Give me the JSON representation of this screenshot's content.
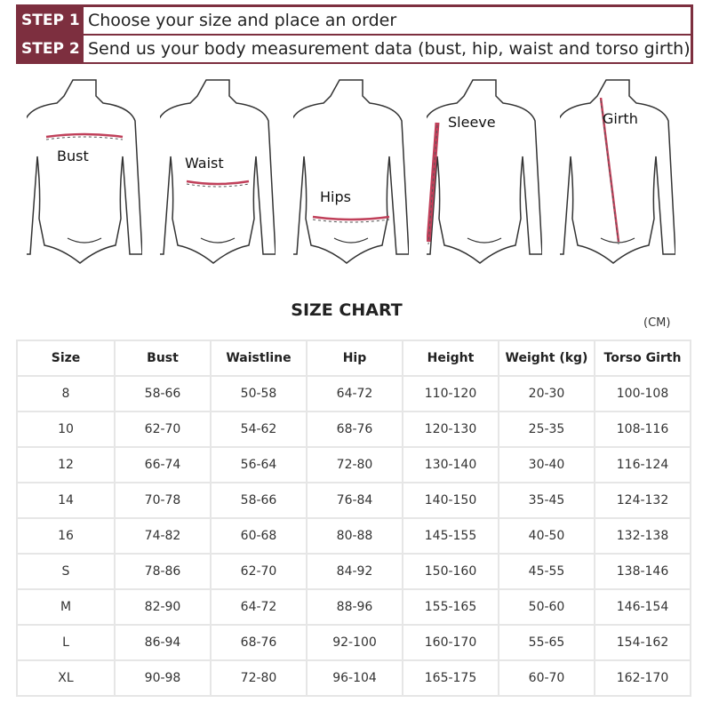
{
  "steps": [
    {
      "label": "STEP 1",
      "text": "Choose your size and place an order"
    },
    {
      "label": "STEP 2",
      "text": "Send us your body measurement data (bust, hip, waist and torso girth)"
    }
  ],
  "figures": [
    "Bust",
    "Waist",
    "Hips",
    "Sleeve",
    "Girth"
  ],
  "colors": {
    "accent": "#7d2f3f",
    "measure_line": "#c0405a"
  },
  "chart": {
    "title": "SIZE CHART",
    "unit": "(CM)",
    "headers": [
      "Size",
      "Bust",
      "Waistline",
      "Hip",
      "Height",
      "Weight (kg)",
      "Torso Girth"
    ],
    "rows": [
      [
        "8",
        "58-66",
        "50-58",
        "64-72",
        "110-120",
        "20-30",
        "100-108"
      ],
      [
        "10",
        "62-70",
        "54-62",
        "68-76",
        "120-130",
        "25-35",
        "108-116"
      ],
      [
        "12",
        "66-74",
        "56-64",
        "72-80",
        "130-140",
        "30-40",
        "116-124"
      ],
      [
        "14",
        "70-78",
        "58-66",
        "76-84",
        "140-150",
        "35-45",
        "124-132"
      ],
      [
        "16",
        "74-82",
        "60-68",
        "80-88",
        "145-155",
        "40-50",
        "132-138"
      ],
      [
        "S",
        "78-86",
        "62-70",
        "84-92",
        "150-160",
        "45-55",
        "138-146"
      ],
      [
        "M",
        "82-90",
        "64-72",
        "88-96",
        "155-165",
        "50-60",
        "146-154"
      ],
      [
        "L",
        "86-94",
        "68-76",
        "92-100",
        "160-170",
        "55-65",
        "154-162"
      ],
      [
        "XL",
        "90-98",
        "72-80",
        "96-104",
        "165-175",
        "60-70",
        "162-170"
      ]
    ]
  }
}
